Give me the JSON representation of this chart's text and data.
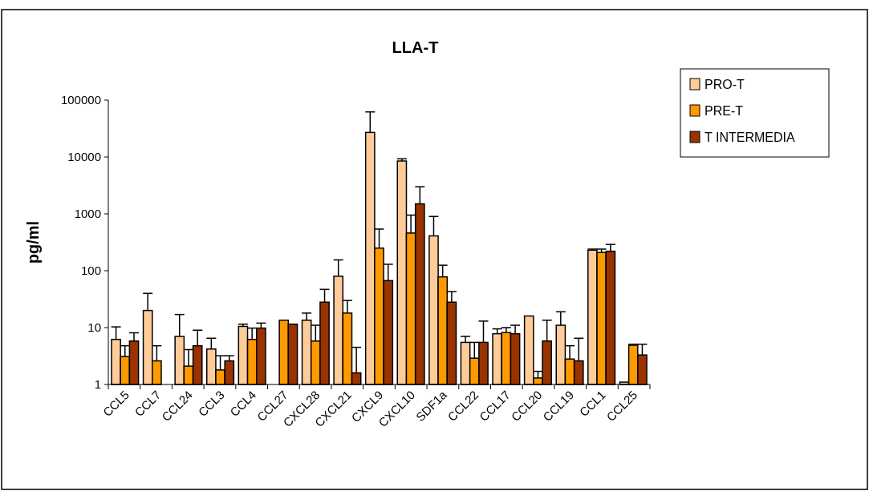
{
  "chart_data": {
    "type": "bar",
    "title": "LLA-T",
    "ylabel": "pg/ml",
    "categories": [
      "CCL5",
      "CCL7",
      "CCL24",
      "CCL3",
      "CCL4",
      "CCL27",
      "CXCL28",
      "CXCL21",
      "CXCL9",
      "CXCL10",
      "SDF1a",
      "CCL22",
      "CCL17",
      "CCL20",
      "CCL19",
      "CCL1",
      "CCL25"
    ],
    "series": [
      {
        "name": "PRO-T",
        "color": "#ffcc99",
        "values": [
          6.2,
          20,
          7,
          4.2,
          10.5,
          null,
          13.5,
          80,
          27000,
          8500,
          410,
          5.5,
          7.8,
          16,
          11,
          230,
          1.1
        ],
        "errors": [
          [
            6.2,
            10.3
          ],
          [
            20,
            40
          ],
          [
            7,
            17
          ],
          [
            4.2,
            6.5
          ],
          [
            10.5,
            11.5
          ],
          null,
          [
            13.5,
            18
          ],
          [
            80,
            155
          ],
          [
            27000,
            62000
          ],
          [
            8500,
            9300
          ],
          [
            410,
            900
          ],
          [
            5.5,
            7
          ],
          [
            7.8,
            9.5
          ],
          null,
          [
            11,
            19
          ],
          [
            230,
            240
          ],
          null
        ]
      },
      {
        "name": "PRE-T",
        "color": "#ff9900",
        "values": [
          3.1,
          2.6,
          2.1,
          1.8,
          6.2,
          13.5,
          5.8,
          18,
          250,
          460,
          78,
          2.9,
          8.2,
          1.3,
          2.8,
          210,
          4.9
        ],
        "errors": [
          [
            3.1,
            4.8
          ],
          [
            2.6,
            4.8
          ],
          [
            2.1,
            4.1
          ],
          [
            1.8,
            3.2
          ],
          [
            6.2,
            9.8
          ],
          null,
          [
            5.8,
            11
          ],
          [
            18,
            30
          ],
          [
            250,
            540
          ],
          [
            460,
            950
          ],
          [
            78,
            125
          ],
          [
            2.9,
            5.5
          ],
          [
            8.2,
            10
          ],
          [
            1.3,
            1.7
          ],
          [
            2.8,
            4.8
          ],
          [
            210,
            240
          ],
          [
            4.9,
            5.1
          ]
        ]
      },
      {
        "name": "T INTERMEDIA",
        "color": "#993300",
        "values": [
          5.8,
          null,
          4.8,
          2.6,
          9.8,
          11.5,
          28,
          1.6,
          67,
          1500,
          28,
          5.5,
          7.8,
          5.8,
          2.6,
          220,
          3.3
        ],
        "errors": [
          [
            5.8,
            8.1
          ],
          null,
          [
            4.8,
            9
          ],
          [
            2.6,
            3.2
          ],
          [
            9.8,
            12
          ],
          null,
          [
            28,
            47
          ],
          [
            1.6,
            4.5
          ],
          [
            67,
            130
          ],
          [
            1500,
            3000
          ],
          [
            28,
            43
          ],
          [
            5.5,
            13
          ],
          [
            7.8,
            11
          ],
          [
            5.8,
            13.5
          ],
          [
            2.6,
            6.5
          ],
          [
            220,
            290
          ],
          [
            3.3,
            5.1
          ]
        ]
      }
    ],
    "log": true,
    "ylim": [
      1,
      100000
    ],
    "yticks": [
      1,
      10,
      100,
      1000,
      10000,
      100000
    ],
    "grid": false,
    "legend": "top right"
  }
}
